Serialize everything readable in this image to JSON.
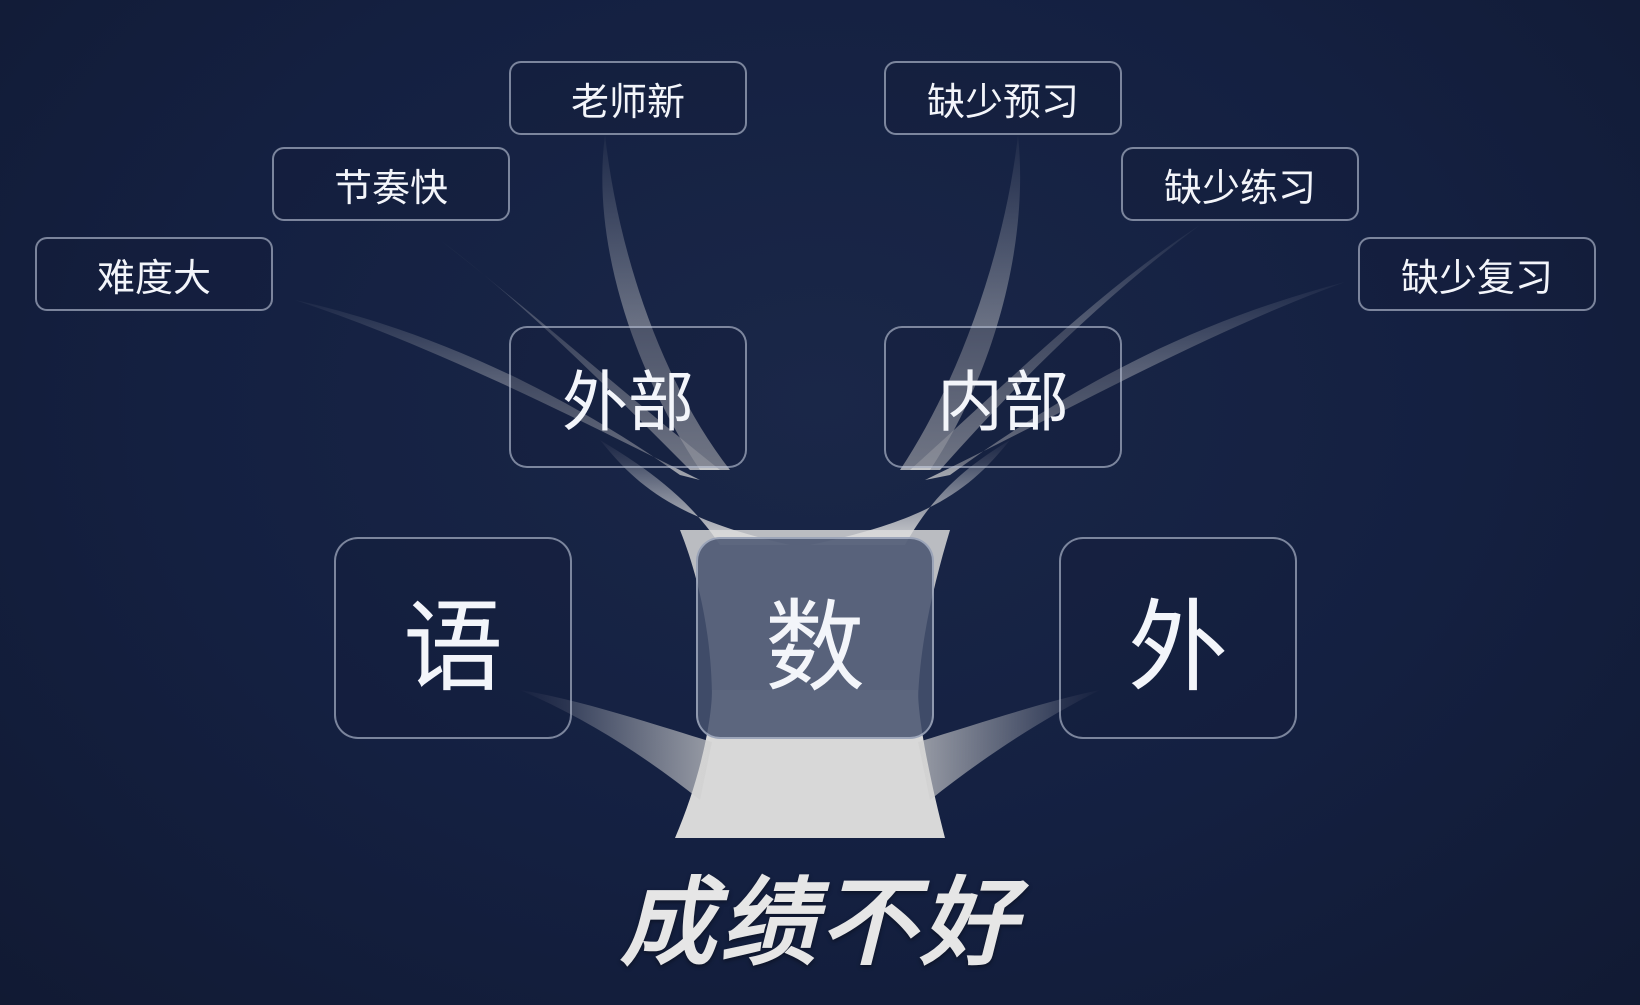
{
  "title": "成绩不好",
  "subjects": [
    "语",
    "数",
    "外"
  ],
  "branches": [
    "外部",
    "内部"
  ],
  "external_reasons": [
    "难度大",
    "节奏快",
    "老师新"
  ],
  "internal_reasons": [
    "缺少预习",
    "缺少练习",
    "缺少复习"
  ],
  "colors": {
    "background": "#142041",
    "trunk": "#d9d9d9",
    "box_border": "#c9d0e0",
    "text": "#f3f5fa"
  }
}
